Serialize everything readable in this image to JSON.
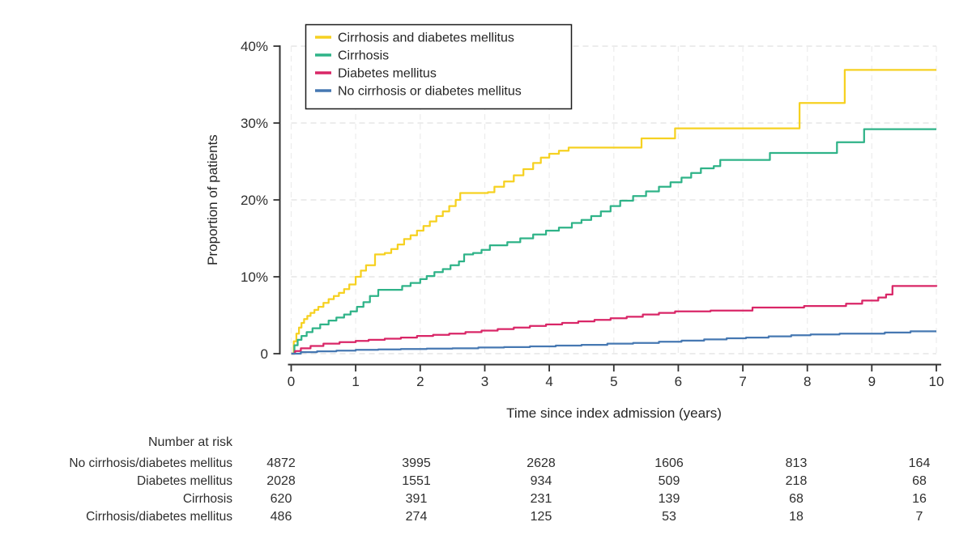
{
  "figure": {
    "background": "#ffffff",
    "text_color": "#2e2e2e",
    "axis_color": "#333333",
    "gridline_color": "#e0e0e0"
  },
  "chart_data": {
    "type": "line",
    "subtype": "step-cumulative-incidence",
    "title": "",
    "xlabel": "Time since index admission (years)",
    "ylabel": "Proportion of patients",
    "xlim": [
      0,
      10
    ],
    "ylim": [
      0,
      40
    ],
    "x_ticks": [
      0,
      1,
      2,
      3,
      4,
      5,
      6,
      7,
      8,
      9,
      10
    ],
    "x_tick_labels": [
      "0",
      "1",
      "2",
      "3",
      "4",
      "5",
      "6",
      "7",
      "8",
      "9",
      "10"
    ],
    "y_ticks": [
      0,
      10,
      20,
      30,
      40
    ],
    "y_tick_labels": [
      "0",
      "10%",
      "20%",
      "30%",
      "40%"
    ],
    "grid": "dashed horizontal and vertical gridlines",
    "legend_position": "top-left inside plot, boxed",
    "series": [
      {
        "name": "Cirrhosis and diabetes mellitus",
        "color": "#F6D121",
        "x": [
          0,
          0.04,
          0.08,
          0.12,
          0.16,
          0.2,
          0.25,
          0.3,
          0.36,
          0.42,
          0.5,
          0.58,
          0.66,
          0.74,
          0.82,
          0.9,
          1.0,
          1.08,
          1.16,
          1.3,
          1.45,
          1.55,
          1.65,
          1.75,
          1.85,
          1.95,
          2.05,
          2.15,
          2.25,
          2.35,
          2.45,
          2.55,
          2.62,
          3.05,
          3.15,
          3.3,
          3.45,
          3.6,
          3.75,
          3.87,
          4.0,
          4.15,
          4.3,
          5.43,
          5.95,
          7.88,
          8.58,
          10
        ],
        "y": [
          0,
          1.6,
          2.6,
          3.4,
          4.0,
          4.5,
          4.9,
          5.3,
          5.7,
          6.1,
          6.6,
          7.1,
          7.5,
          7.9,
          8.4,
          9.0,
          10.0,
          10.8,
          11.5,
          12.9,
          13.1,
          13.6,
          14.2,
          14.9,
          15.4,
          16.0,
          16.6,
          17.2,
          17.9,
          18.5,
          19.2,
          20.0,
          20.9,
          21.0,
          21.7,
          22.4,
          23.2,
          24.0,
          24.8,
          25.5,
          26.0,
          26.4,
          26.8,
          28.0,
          29.3,
          32.6,
          36.9,
          36.9
        ]
      },
      {
        "name": "Cirrhosis",
        "color": "#2FB388",
        "x": [
          0,
          0.05,
          0.1,
          0.16,
          0.24,
          0.33,
          0.45,
          0.58,
          0.7,
          0.82,
          0.92,
          1.02,
          1.12,
          1.22,
          1.35,
          1.72,
          1.85,
          2.0,
          2.1,
          2.22,
          2.35,
          2.47,
          2.6,
          2.68,
          2.82,
          2.95,
          3.08,
          3.35,
          3.55,
          3.75,
          3.95,
          4.15,
          4.35,
          4.5,
          4.65,
          4.8,
          4.95,
          5.1,
          5.3,
          5.5,
          5.7,
          5.88,
          6.05,
          6.2,
          6.35,
          6.55,
          6.65,
          7.42,
          8.46,
          8.88,
          10
        ],
        "y": [
          0,
          1.1,
          1.8,
          2.3,
          2.8,
          3.3,
          3.8,
          4.3,
          4.7,
          5.1,
          5.5,
          6.1,
          6.7,
          7.5,
          8.3,
          8.8,
          9.2,
          9.7,
          10.1,
          10.6,
          11.0,
          11.5,
          12.0,
          12.9,
          13.1,
          13.5,
          14.1,
          14.5,
          15.0,
          15.5,
          16.0,
          16.4,
          17.0,
          17.4,
          17.9,
          18.5,
          19.2,
          19.9,
          20.5,
          21.1,
          21.7,
          22.3,
          22.9,
          23.5,
          24.1,
          24.4,
          25.2,
          26.1,
          27.5,
          29.2,
          29.2
        ]
      },
      {
        "name": "Diabetes mellitus",
        "color": "#D92667",
        "x": [
          0,
          0.06,
          0.15,
          0.3,
          0.5,
          0.75,
          1.0,
          1.2,
          1.45,
          1.7,
          1.95,
          2.2,
          2.45,
          2.7,
          2.95,
          3.2,
          3.45,
          3.7,
          3.95,
          4.2,
          4.45,
          4.7,
          4.95,
          5.2,
          5.45,
          5.7,
          5.95,
          6.5,
          7.15,
          7.95,
          8.6,
          8.85,
          9.1,
          9.22,
          9.32,
          10
        ],
        "y": [
          0,
          0.35,
          0.7,
          1.0,
          1.3,
          1.5,
          1.65,
          1.8,
          1.95,
          2.1,
          2.3,
          2.45,
          2.6,
          2.8,
          3.0,
          3.2,
          3.4,
          3.6,
          3.8,
          4.0,
          4.2,
          4.4,
          4.6,
          4.8,
          5.1,
          5.3,
          5.5,
          5.6,
          6.0,
          6.2,
          6.5,
          6.9,
          7.3,
          7.7,
          8.8,
          8.9
        ]
      },
      {
        "name": "No cirrhosis or diabetes mellitus",
        "color": "#4678B2",
        "x": [
          0,
          0.15,
          0.4,
          0.7,
          1.0,
          1.35,
          1.7,
          2.1,
          2.5,
          2.9,
          3.3,
          3.7,
          4.1,
          4.5,
          4.9,
          5.3,
          5.7,
          6.05,
          6.4,
          6.75,
          7.05,
          7.4,
          7.75,
          8.05,
          8.5,
          9.2,
          9.6,
          10
        ],
        "y": [
          0,
          0.2,
          0.3,
          0.4,
          0.5,
          0.55,
          0.6,
          0.65,
          0.7,
          0.8,
          0.85,
          0.95,
          1.05,
          1.15,
          1.3,
          1.4,
          1.55,
          1.7,
          1.85,
          2.0,
          2.1,
          2.25,
          2.4,
          2.5,
          2.6,
          2.75,
          2.9,
          2.9
        ]
      }
    ]
  },
  "risk_table": {
    "title": "Number at risk",
    "rows": [
      {
        "label": "No cirrhosis/diabetes mellitus",
        "values": [
          "4872",
          "3995",
          "2628",
          "1606",
          "813",
          "164"
        ]
      },
      {
        "label": "Diabetes mellitus",
        "values": [
          "2028",
          "1551",
          "934",
          "509",
          "218",
          "68"
        ]
      },
      {
        "label": "Cirrhosis",
        "values": [
          "620",
          "391",
          "231",
          "139",
          "68",
          "16"
        ]
      },
      {
        "label": "Cirrhosis/diabetes mellitus",
        "values": [
          "486",
          "274",
          "125",
          "53",
          "18",
          "7"
        ]
      }
    ]
  }
}
